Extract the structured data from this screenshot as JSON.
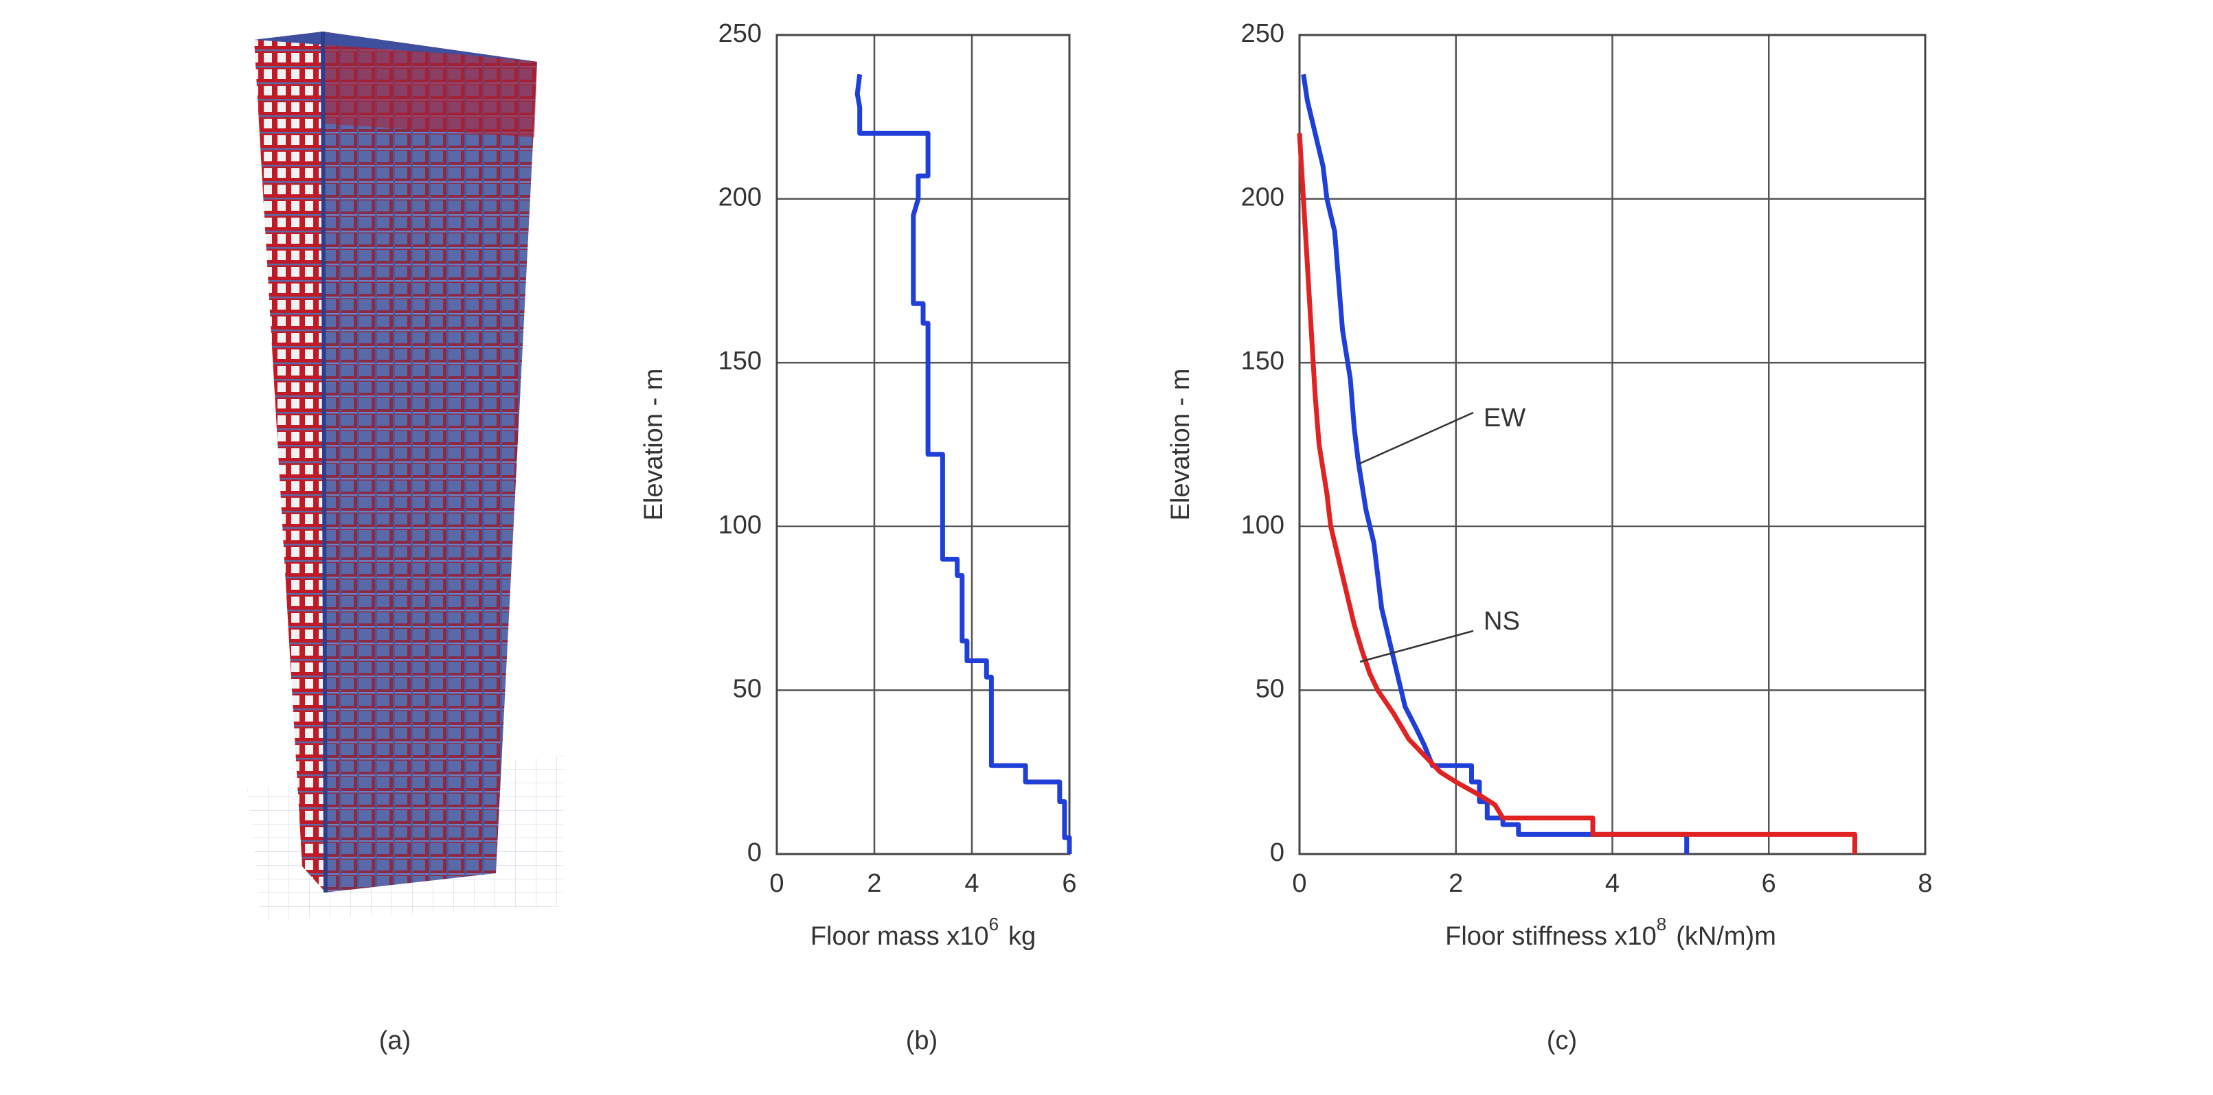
{
  "image_panel": {
    "caption": "(a)"
  },
  "chart_data": [
    {
      "type": "line",
      "caption": "(b)",
      "ylabel": "Elevation - m",
      "xlabel": "Floor mass  x10",
      "xlabel_power": "6",
      "xlabel_unit": "kg",
      "xlim": [
        0,
        6
      ],
      "xticks": [
        0,
        2,
        4,
        6
      ],
      "ylim": [
        0,
        250
      ],
      "yticks": [
        0,
        50,
        100,
        150,
        200,
        250
      ],
      "grid": true,
      "series": [
        {
          "color": "#1f3fd8",
          "x": [
            1.7,
            1.65,
            1.7,
            1.7,
            3.1,
            3.1,
            2.9,
            2.9,
            2.8,
            2.8,
            3.0,
            3.0,
            3.1,
            3.1,
            3.4,
            3.4,
            3.7,
            3.7,
            3.8,
            3.8,
            3.9,
            3.9,
            4.3,
            4.3,
            4.4,
            4.4,
            5.1,
            5.1,
            5.8,
            5.8,
            5.9,
            5.9,
            6.0,
            6.0
          ],
          "values": [
            238,
            232,
            228,
            220,
            220,
            207,
            207,
            200,
            195,
            168,
            168,
            162,
            162,
            122,
            122,
            90,
            90,
            85,
            85,
            65,
            65,
            59,
            59,
            54,
            54,
            27,
            27,
            22,
            22,
            16,
            16,
            5,
            5,
            0
          ]
        }
      ]
    },
    {
      "type": "line",
      "caption": "(c)",
      "ylabel": "Elevation - m",
      "xlabel": "Floor stiffness  x10",
      "xlabel_power": "8",
      "xlabel_unit": "(kN/m)m",
      "xlim": [
        0,
        8
      ],
      "xticks": [
        0,
        2,
        4,
        6,
        8
      ],
      "ylim": [
        0,
        250
      ],
      "yticks": [
        0,
        50,
        100,
        150,
        200,
        250
      ],
      "grid": true,
      "series": [
        {
          "name": "EW",
          "color": "#1f3fd8",
          "x": [
            0.05,
            0.1,
            0.2,
            0.3,
            0.35,
            0.45,
            0.5,
            0.55,
            0.65,
            0.7,
            0.75,
            0.85,
            0.95,
            1.0,
            1.05,
            1.15,
            1.25,
            1.35,
            1.5,
            1.6,
            1.7,
            2.2,
            2.2,
            2.3,
            2.3,
            2.4,
            2.4,
            2.6,
            2.6,
            2.8,
            2.8,
            4.95,
            4.95
          ],
          "values": [
            238,
            230,
            220,
            210,
            200,
            190,
            175,
            160,
            145,
            130,
            120,
            105,
            95,
            85,
            75,
            65,
            55,
            45,
            38,
            33,
            27,
            27,
            22,
            22,
            16,
            16,
            11,
            11,
            9,
            9,
            6,
            6,
            0
          ]
        },
        {
          "name": "NS",
          "color": "#e02222",
          "x": [
            0,
            0.05,
            0.1,
            0.15,
            0.2,
            0.25,
            0.35,
            0.4,
            0.5,
            0.6,
            0.7,
            0.8,
            0.9,
            1.0,
            1.2,
            1.4,
            1.6,
            1.8,
            2.0,
            2.3,
            2.5,
            2.6,
            3.75,
            3.75,
            7.1,
            7.1
          ],
          "values": [
            220,
            200,
            180,
            160,
            140,
            125,
            110,
            100,
            90,
            80,
            70,
            62,
            55,
            50,
            43,
            35,
            30,
            25,
            22,
            18,
            15,
            11,
            11,
            6,
            6,
            0
          ]
        }
      ]
    }
  ]
}
